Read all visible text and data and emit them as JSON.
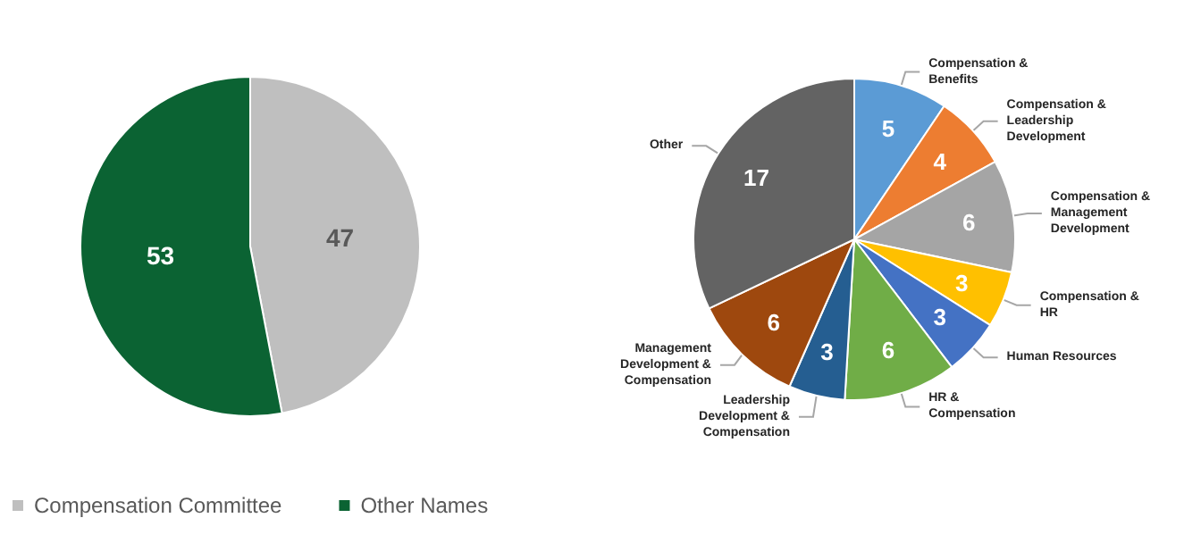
{
  "chart_data": [
    {
      "type": "pie",
      "categories": [
        "Compensation Committee",
        "Other Names"
      ],
      "values": [
        47,
        53
      ],
      "colors": [
        "#bfbfbf",
        "#0b6333"
      ],
      "data_labels": true,
      "legend": "bottom"
    },
    {
      "type": "pie",
      "categories": [
        "Compensation & Benefits",
        "Compensation & Leadership Development",
        "Compensation & Management Development",
        "Compensation & HR",
        "Human Resources",
        "HR & Compensation",
        "Leadership Development & Compensation",
        "Management Development & Compensation",
        "Other"
      ],
      "values": [
        5,
        4,
        6,
        3,
        3,
        6,
        3,
        6,
        17
      ],
      "colors": [
        "#5b9bd5",
        "#ed7d31",
        "#a5a5a5",
        "#ffc000",
        "#4472c4",
        "#70ad47",
        "#255e91",
        "#9e480e",
        "#636363"
      ],
      "data_labels": true
    }
  ]
}
